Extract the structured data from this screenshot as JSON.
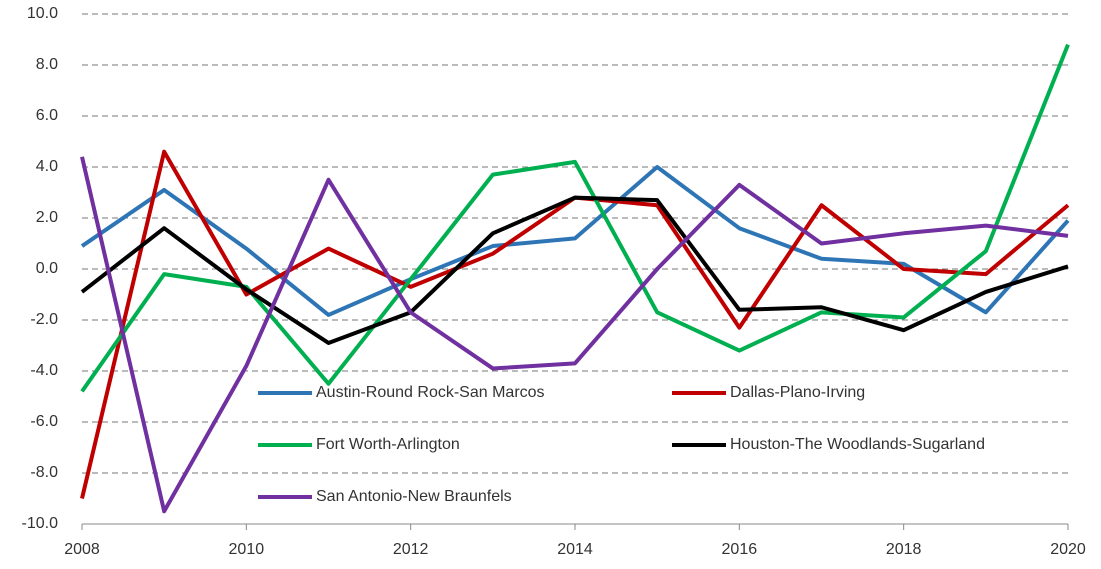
{
  "chart_data": {
    "type": "line",
    "x": [
      2008,
      2009,
      2010,
      2011,
      2012,
      2013,
      2014,
      2015,
      2016,
      2017,
      2018,
      2019,
      2020
    ],
    "xlim": [
      2008,
      2020
    ],
    "xticks": [
      2008,
      2010,
      2012,
      2014,
      2016,
      2018,
      2020
    ],
    "ylim": [
      -10,
      10
    ],
    "yticks": [
      {
        "value": -10,
        "label": "-10.0"
      },
      {
        "value": -8,
        "label": "-8.0"
      },
      {
        "value": -6,
        "label": "-6.0"
      },
      {
        "value": -4,
        "label": "-4.0"
      },
      {
        "value": -2,
        "label": "-2.0"
      },
      {
        "value": 0,
        "label": "0.0"
      },
      {
        "value": 2,
        "label": "2.0"
      },
      {
        "value": 4,
        "label": "4.0"
      },
      {
        "value": 6,
        "label": "6.0"
      },
      {
        "value": 8,
        "label": "8.0"
      },
      {
        "value": 10,
        "label": "10.0"
      }
    ],
    "grid": true,
    "legend_loc": "lower center",
    "series": [
      {
        "name": "Austin-Round Rock-San Marcos",
        "color": "#2E75B6",
        "values": [
          0.9,
          3.1,
          0.8,
          -1.8,
          -0.4,
          0.9,
          1.2,
          4.0,
          1.6,
          0.4,
          0.2,
          -1.7,
          1.9
        ]
      },
      {
        "name": "Dallas-Plano-Irving",
        "color": "#C00000",
        "values": [
          -9.0,
          4.6,
          -1.0,
          0.8,
          -0.7,
          0.6,
          2.8,
          2.5,
          -2.3,
          2.5,
          0.0,
          -0.2,
          2.5
        ]
      },
      {
        "name": "Fort Worth-Arlington",
        "color": "#00B050",
        "values": [
          -4.8,
          -0.2,
          -0.7,
          -4.5,
          -0.4,
          3.7,
          4.2,
          -1.7,
          -3.2,
          -1.7,
          -1.9,
          0.7,
          8.8
        ]
      },
      {
        "name": "Houston-The Woodlands-Sugarland",
        "color": "#000000",
        "values": [
          -0.9,
          1.6,
          -0.8,
          -2.9,
          -1.7,
          1.4,
          2.8,
          2.7,
          -1.6,
          -1.5,
          -2.4,
          -0.9,
          0.1
        ]
      },
      {
        "name": "San Antonio-New Braunfels",
        "color": "#7030A0",
        "values": [
          4.4,
          -9.5,
          -3.8,
          3.5,
          -1.7,
          -3.9,
          -3.7,
          0.0,
          3.3,
          1.0,
          1.4,
          1.7,
          1.3
        ]
      }
    ]
  }
}
